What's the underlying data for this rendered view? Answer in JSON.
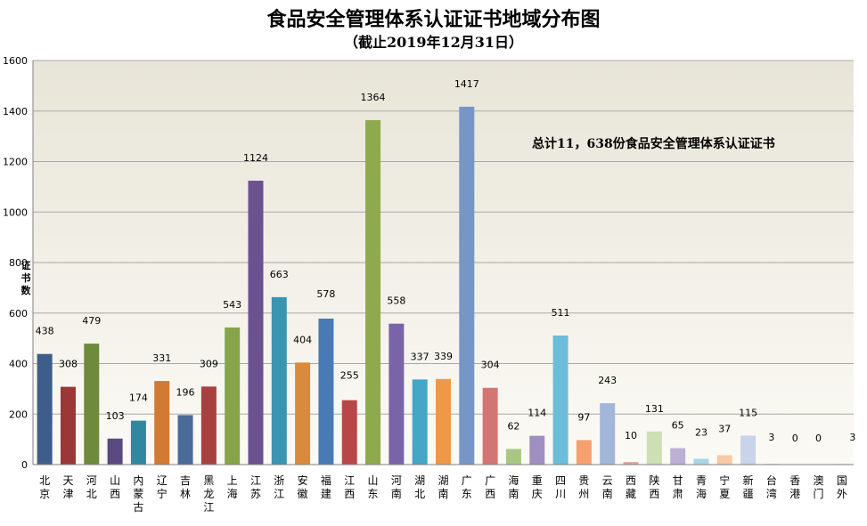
{
  "chart_data": {
    "type": "bar",
    "title": "食品安全管理体系认证证书地域分布图",
    "subtitle": "（截止2019年12月31日）",
    "ylabel": "证书数",
    "annotation": "总计11，638份食品安全管理体系认证证书",
    "ylim": [
      0,
      1600
    ],
    "yticks": [
      0,
      200,
      400,
      600,
      800,
      1000,
      1200,
      1400,
      1600
    ],
    "grid": true,
    "categories": [
      "北京",
      "天津",
      "河北",
      "山西",
      "内蒙古",
      "辽宁",
      "吉林",
      "黑龙江",
      "上海",
      "江苏",
      "浙江",
      "安徽",
      "福建",
      "江西",
      "山东",
      "河南",
      "湖北",
      "湖南",
      "广东",
      "广西",
      "海南",
      "重庆",
      "四川",
      "贵州",
      "云南",
      "西藏",
      "陕西",
      "甘肃",
      "青海",
      "宁夏",
      "新疆",
      "台湾",
      "香港",
      "澳门",
      "国外"
    ],
    "values": [
      438,
      308,
      479,
      103,
      174,
      331,
      196,
      309,
      543,
      1124,
      663,
      404,
      578,
      255,
      1364,
      558,
      337,
      339,
      1417,
      304,
      62,
      114,
      511,
      97,
      243,
      10,
      131,
      65,
      23,
      37,
      115,
      3,
      0,
      0,
      3
    ],
    "colors": [
      "#3f5d8a",
      "#9a3838",
      "#6e8a3a",
      "#5a4a80",
      "#2f88a0",
      "#d27a32",
      "#4a6a9a",
      "#a84040",
      "#86a54a",
      "#6a5190",
      "#3a95b0",
      "#d98a3c",
      "#4a7ab5",
      "#b84848",
      "#8faa4e",
      "#7a64a8",
      "#45a6c6",
      "#ee9848",
      "#7795c6",
      "#d27674",
      "#a9c783",
      "#9f8ec0",
      "#6cbdd9",
      "#f7a06f",
      "#a3b5d8",
      "#e29f9a",
      "#cddfb4",
      "#bcb0d4",
      "#a6d6e6",
      "#f8c9a5",
      "#c7d4ea",
      "#efc9c6",
      "#e2ecd3",
      "#dcd5e8",
      "#d6ecf3"
    ]
  }
}
